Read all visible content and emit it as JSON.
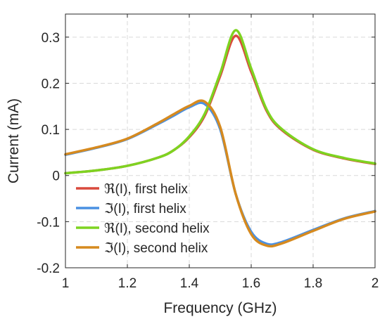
{
  "chart_data": {
    "type": "line",
    "xlabel": "Frequency (GHz)",
    "ylabel": "Current (mA)",
    "xlim": [
      1,
      2
    ],
    "ylim": [
      -0.2,
      0.35
    ],
    "xticks": [
      1,
      1.2,
      1.4,
      1.6,
      1.8,
      2
    ],
    "xtick_labels": [
      "1",
      "1.2",
      "1.4",
      "1.6",
      "1.8",
      "2"
    ],
    "yticks": [
      -0.2,
      -0.1,
      0,
      0.1,
      0.2,
      0.3
    ],
    "ytick_labels": [
      "-0.2",
      "-0.1",
      "0",
      "0.1",
      "0.2",
      "0.3"
    ],
    "grid": true,
    "legend_position": "lower-left",
    "x": [
      1.0,
      1.1,
      1.2,
      1.3,
      1.35,
      1.4,
      1.45,
      1.5,
      1.55,
      1.6,
      1.65,
      1.7,
      1.8,
      1.9,
      2.0
    ],
    "series": [
      {
        "name": "ℜ(I), first helix",
        "color": "#d94a3d",
        "values": [
          0.005,
          0.011,
          0.021,
          0.039,
          0.055,
          0.083,
          0.13,
          0.216,
          0.303,
          0.225,
          0.14,
          0.098,
          0.056,
          0.037,
          0.025
        ]
      },
      {
        "name": "ℑ(I), first helix",
        "color": "#4a90e2",
        "values": [
          0.045,
          0.06,
          0.079,
          0.112,
          0.13,
          0.148,
          0.155,
          0.1,
          -0.04,
          -0.122,
          -0.148,
          -0.144,
          -0.118,
          -0.093,
          -0.077
        ]
      },
      {
        "name": "ℜ(I), second helix",
        "color": "#7ed321",
        "values": [
          0.005,
          0.011,
          0.021,
          0.039,
          0.055,
          0.085,
          0.134,
          0.222,
          0.315,
          0.232,
          0.143,
          0.1,
          0.057,
          0.038,
          0.026
        ]
      },
      {
        "name": "ℑ(I), second helix",
        "color": "#d68a1f",
        "values": [
          0.046,
          0.061,
          0.08,
          0.114,
          0.133,
          0.151,
          0.16,
          0.105,
          -0.04,
          -0.127,
          -0.152,
          -0.147,
          -0.12,
          -0.094,
          -0.078
        ]
      }
    ]
  }
}
